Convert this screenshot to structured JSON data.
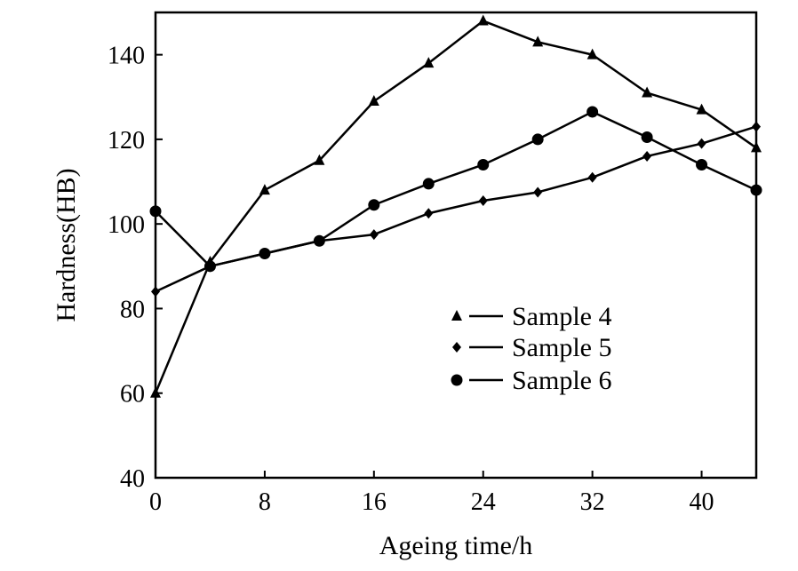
{
  "chart_data": {
    "type": "line",
    "xlabel": "Ageing time/h",
    "ylabel": "Hardness(HB)",
    "xlim": [
      0,
      44
    ],
    "ylim": [
      40,
      150
    ],
    "xticks": [
      0,
      8,
      16,
      24,
      32,
      40
    ],
    "yticks": [
      40,
      60,
      80,
      100,
      120,
      140
    ],
    "grid": false,
    "legend_position": "center-right",
    "series": [
      {
        "name": "Sample 4",
        "marker": "triangle",
        "x": [
          0,
          4,
          8,
          12,
          16,
          20,
          24,
          28,
          32,
          36,
          40,
          44
        ],
        "values": [
          60,
          91,
          108,
          115,
          129,
          138,
          148,
          143,
          140,
          131,
          127,
          118
        ]
      },
      {
        "name": "Sample 5",
        "marker": "diamond",
        "x": [
          0,
          4,
          8,
          12,
          16,
          20,
          24,
          28,
          32,
          36,
          40,
          44
        ],
        "values": [
          84,
          90,
          93,
          96,
          97.5,
          102.5,
          105.5,
          107.5,
          111,
          116,
          119,
          123
        ]
      },
      {
        "name": "Sample 6",
        "marker": "circle",
        "x": [
          0,
          4,
          8,
          12,
          16,
          20,
          24,
          28,
          32,
          36,
          40,
          44
        ],
        "values": [
          103,
          90,
          93,
          96,
          104.5,
          109.5,
          114,
          120,
          126.5,
          120.5,
          114,
          108
        ]
      }
    ]
  }
}
